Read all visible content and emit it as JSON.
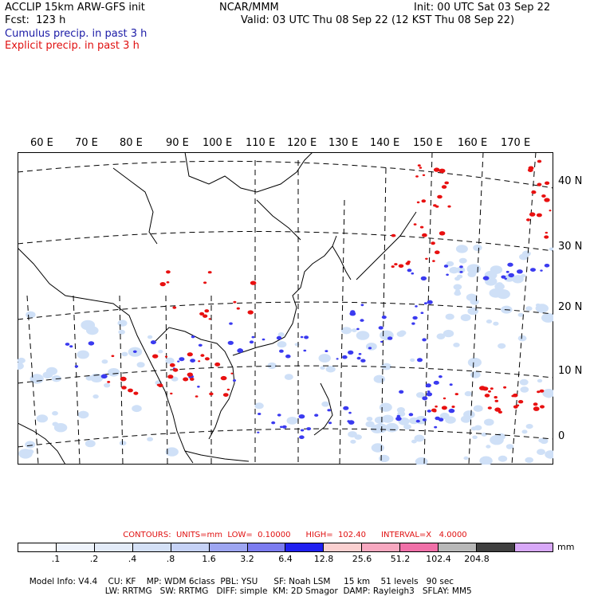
{
  "header": {
    "model": "ACCLIP 15km ARW-GFS init",
    "org": "NCAR/MMM",
    "init": "Init: 00 UTC Sat 03 Sep 22",
    "fcst": "Fcst:  123 h",
    "valid": "Valid: 03 UTC Thu 08 Sep 22 (12 KST Thu 08 Sep 22)",
    "cumulus": "Cumulus precip. in past 3 h",
    "explicit": "Explicit precip. in past 3 h"
  },
  "map": {
    "lon_labels": [
      "60 E",
      "70 E",
      "80 E",
      "90 E",
      "100 E",
      "110 E",
      "120 E",
      "130 E",
      "140 E",
      "150 E",
      "160 E",
      "170 E"
    ],
    "lat_labels": [
      "40 N",
      "30 N",
      "20 N",
      "10 N",
      "0"
    ],
    "colors": {
      "cumulus": "#3a3af0",
      "explicit": "#e81010",
      "light_precip": "#cfe0f7",
      "coast": "#000000",
      "grid": "#000000"
    }
  },
  "contours": "CONTOURS:  UNITS=mm  LOW=  0.10000      HIGH=  102.40      INTERVAL=X   4.0000",
  "colorbar": {
    "units": "mm",
    "colors": [
      "#ffffff",
      "#eef3fb",
      "#e3ebf8",
      "#d4e0f6",
      "#c6d2f6",
      "#9ea6f2",
      "#7c7cf0",
      "#2020f0",
      "#fad0d0",
      "#f7a8c0",
      "#f070a8",
      "#b8b8b8",
      "#404040",
      "#d8a8f8"
    ],
    "labels": [
      ".1",
      ".2",
      ".4",
      ".8",
      "1.6",
      "3.2",
      "6.4",
      "12.8",
      "25.6",
      "51.2",
      "102.4",
      "204.8"
    ]
  },
  "footer": {
    "line1": [
      "Model Info: V4.4",
      "CU: KF",
      "MP: WDM 6class",
      "PBL: YSU",
      "SF: Noah LSM",
      "15 km",
      "51 levels",
      "90 sec"
    ],
    "line2": [
      "LW: RRTMG",
      "SW: RRTMG",
      "DIFF: simple",
      "KM: 2D Smagor",
      "DAMP: Rayleigh3",
      "SFLAY: MM5"
    ]
  }
}
